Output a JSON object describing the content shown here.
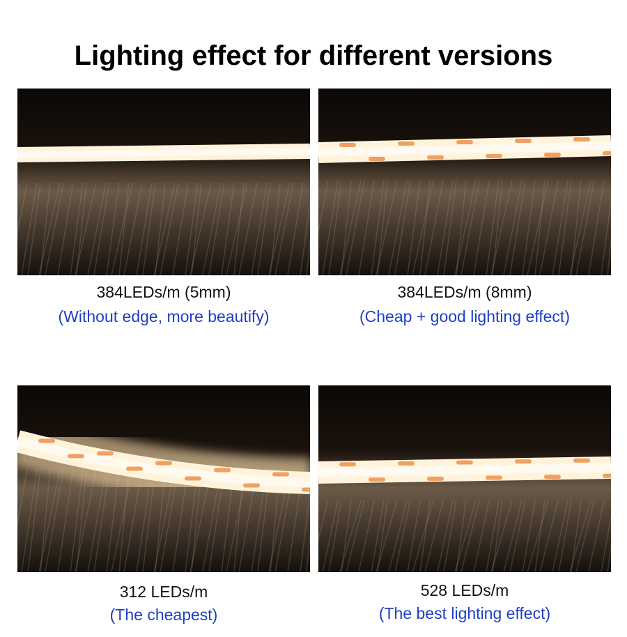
{
  "header": {
    "title": "Lighting effect for different versions"
  },
  "panels": [
    {
      "caption": "384LEDs/m (5mm)",
      "note": "(Without edge, more beautify)"
    },
    {
      "caption": "384LEDs/m (8mm)",
      "note": "(Cheap + good lighting effect)"
    },
    {
      "caption": "312 LEDs/m",
      "note": "(The cheapest)"
    },
    {
      "caption": "528 LEDs/m",
      "note": "(The best lighting effect)"
    }
  ]
}
